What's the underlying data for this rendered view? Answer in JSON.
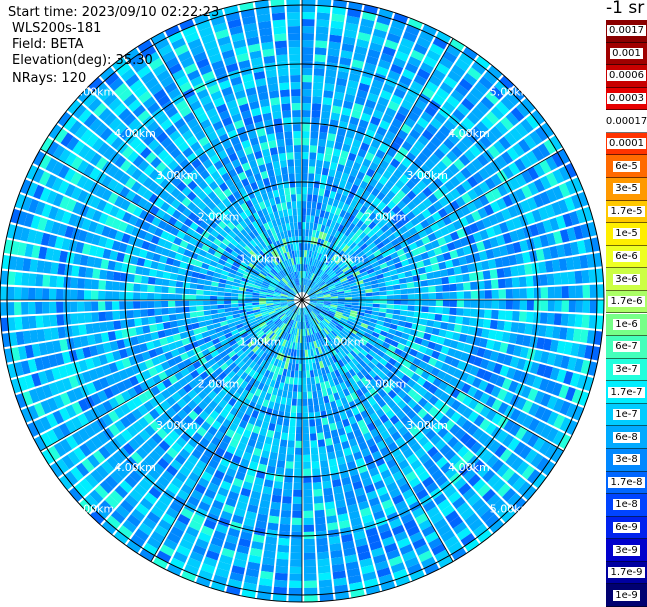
{
  "info": {
    "start_time": "Start time: 2023/09/10 02:22:23",
    "instrument": "WLS200s-181",
    "field": "Field: BETA",
    "elevation": "Elevation(deg): 35.30",
    "nrays": "NRays: 120"
  },
  "chart_data": {
    "type": "heatmap",
    "projection": "polar PPI",
    "range_rings_km": [
      1,
      2,
      3,
      4,
      5
    ],
    "ring_labels": [
      "1.00km",
      "2.00km",
      "3.00km",
      "4.00km",
      "5.00km"
    ],
    "radial_spokes_deg": [
      0,
      30,
      60,
      90,
      120,
      150,
      180,
      210,
      240,
      270,
      300,
      330
    ],
    "n_rays": 120,
    "colorbar_title": "-1 sr",
    "colorbar": [
      {
        "label": "0.0017",
        "color": "#8b0000"
      },
      {
        "label": "0.001",
        "color": "#a00000"
      },
      {
        "label": "0.0006",
        "color": "#c80000"
      },
      {
        "label": "0.0003",
        "color": "#e60000"
      },
      {
        "label": "0.00017",
        "color": "#ffffff"
      },
      {
        "label": "0.0001",
        "color": "#ff3300"
      },
      {
        "label": "6e-5",
        "color": "#ff6a00"
      },
      {
        "label": "3e-5",
        "color": "#ff9900"
      },
      {
        "label": "1.7e-5",
        "color": "#ffc800"
      },
      {
        "label": "1e-5",
        "color": "#ffee00"
      },
      {
        "label": "6e-6",
        "color": "#eeff22"
      },
      {
        "label": "3e-6",
        "color": "#ccff44"
      },
      {
        "label": "1.7e-6",
        "color": "#aaff66"
      },
      {
        "label": "1e-6",
        "color": "#77ff88"
      },
      {
        "label": "6e-7",
        "color": "#44ffbb"
      },
      {
        "label": "3e-7",
        "color": "#22ffdd"
      },
      {
        "label": "1.7e-7",
        "color": "#00eeff"
      },
      {
        "label": "1e-7",
        "color": "#00ccff"
      },
      {
        "label": "6e-8",
        "color": "#00aaff"
      },
      {
        "label": "3e-8",
        "color": "#0088ff"
      },
      {
        "label": "1.7e-8",
        "color": "#0066ff"
      },
      {
        "label": "1e-8",
        "color": "#0044ff"
      },
      {
        "label": "6e-9",
        "color": "#0022ee"
      },
      {
        "label": "3e-9",
        "color": "#0000cc"
      },
      {
        "label": "1.7e-9",
        "color": "#0000a0"
      },
      {
        "label": "1e-9",
        "color": "#000070"
      }
    ]
  }
}
